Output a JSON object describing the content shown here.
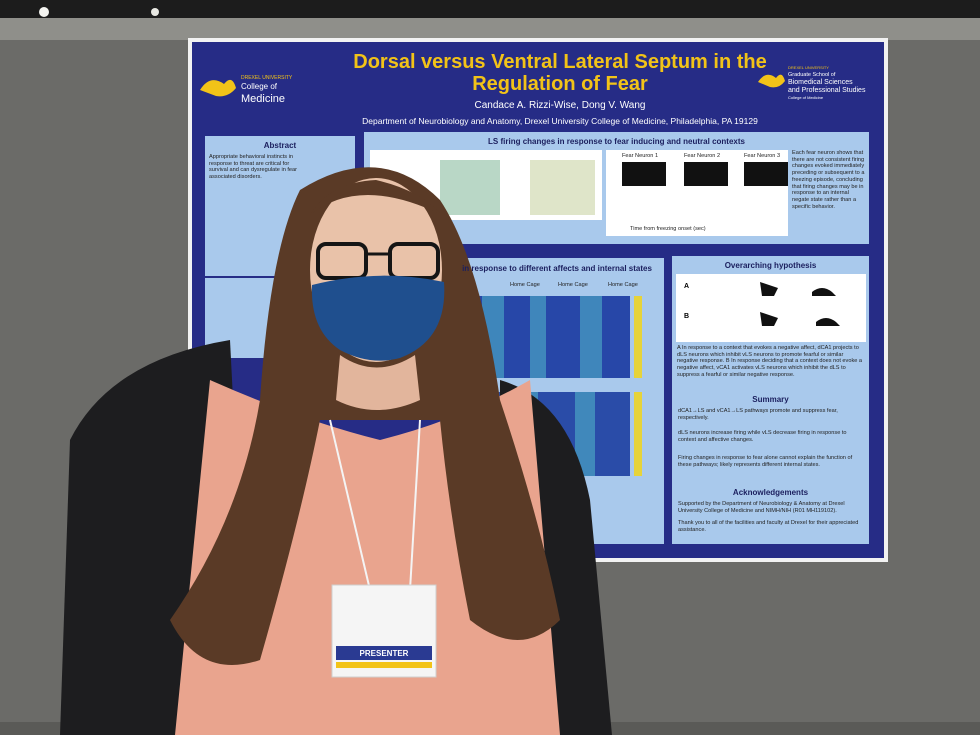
{
  "poster": {
    "title_line1": "Dorsal versus Ventral Lateral Septum in the",
    "title_line2": "Regulation of Fear",
    "authors": "Candace A. Rizzi-Wise, Dong V. Wang",
    "affiliation": "Department of Neurobiology and Anatomy, Drexel University College of Medicine, Philadelphia, PA 19129",
    "logo_left": [
      "DREXEL UNIVERSITY",
      "College of",
      "Medicine"
    ],
    "logo_right": [
      "DREXEL UNIVERSITY",
      "Graduate School of",
      "Biomedical Sciences",
      "and Professional Studies",
      "College of Medicine"
    ],
    "abstract": {
      "heading": "Abstract",
      "text": "Appropriate behavioral instincts in response to threat are critical for survival and can dysregulate in fear associated disorders."
    },
    "ls_firing": {
      "heading": "LS firing changes in response to fear inducing and neutral contexts",
      "neurons": [
        "Fear Neuron 1",
        "Fear Neuron 2",
        "Fear Neuron 3"
      ],
      "x_label": "Time from freezing onset (sec)",
      "text": "Each fear neuron shows that there are not consistent firing changes evoked immediately preceding or subsequent to a freezing episode, concluding that firing changes may be in response to an internal negate state rather than a specific behavior."
    },
    "affects": {
      "heading": "in response to different affects and internal states",
      "labels": [
        "Home Cage",
        "Home Cage",
        "Home Cage"
      ]
    },
    "hypothesis": {
      "heading": "Overarching hypothesis",
      "text": "A In response to a context that evokes a negative affect, dCA1 projects to dLS neurons which inhibit vLS neurons to promote fearful or similar negative response. B In response deciding that a context does not evoke a negative affect, vCA1 activates vLS neurons which inhibit the dLS to suppress a fearful or similar negative response."
    },
    "summary": {
      "heading": "Summary",
      "points": [
        "dCA1→LS and vCA1→LS pathways promote and suppress fear, respectively.",
        "dLS neurons increase firing while vLS decrease firing in response to context and affective changes.",
        "Firing changes in response to fear alone cannot explain the function of these pathways; likely represents different internal states."
      ]
    },
    "acknowledgements": {
      "heading": "Acknowledgements",
      "points": [
        "Supported by the Department of Neurobiology & Anatomy at Drexel University College of Medicine and NIMH/NIH (R01 MH119102).",
        "Thank you to all of the facilities and faculty at Drexel for their appreciated assistance."
      ]
    }
  },
  "badge": {
    "role": "PRESENTER"
  }
}
